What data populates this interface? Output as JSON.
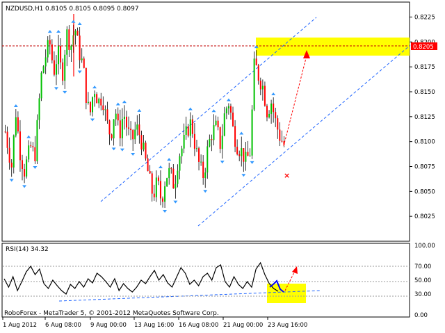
{
  "chart_data": [
    {
      "type": "candlestick",
      "symbol_label": "NZDUSD,H1",
      "ohlc_label": "0.8105 0.8105 0.8095 0.8097",
      "ylim": [
        0.8,
        0.824
      ],
      "y_ticks": [
        "0.8225",
        "0.8200",
        "0.8175",
        "0.8150",
        "0.8125",
        "0.8100",
        "0.8075",
        "0.8050",
        "0.8025"
      ],
      "y_tick_values": [
        0.8225,
        0.82,
        0.8175,
        0.815,
        0.8125,
        0.81,
        0.8075,
        0.805,
        0.8025
      ],
      "highlight_level": "0.8205",
      "highlight_value": 0.8205,
      "price_path": [
        [
          0,
          0.811
        ],
        [
          3,
          0.8075
        ],
        [
          5,
          0.813
        ],
        [
          7,
          0.809
        ],
        [
          9,
          0.807
        ],
        [
          12,
          0.8095
        ],
        [
          14,
          0.8085
        ],
        [
          17,
          0.8165
        ],
        [
          19,
          0.8185
        ],
        [
          21,
          0.82
        ],
        [
          23,
          0.817
        ],
        [
          25,
          0.819
        ],
        [
          27,
          0.8165
        ],
        [
          29,
          0.821
        ],
        [
          31,
          0.8195
        ],
        [
          33,
          0.8215
        ],
        [
          35,
          0.819
        ],
        [
          37,
          0.8175
        ],
        [
          38,
          0.815
        ],
        [
          40,
          0.8125
        ],
        [
          42,
          0.8155
        ],
        [
          44,
          0.814
        ],
        [
          46,
          0.8145
        ],
        [
          48,
          0.812
        ],
        [
          50,
          0.8105
        ],
        [
          52,
          0.8135
        ],
        [
          54,
          0.8105
        ],
        [
          56,
          0.813
        ],
        [
          58,
          0.811
        ],
        [
          60,
          0.81
        ],
        [
          62,
          0.8115
        ],
        [
          64,
          0.8105
        ],
        [
          66,
          0.8085
        ],
        [
          68,
          0.8065
        ],
        [
          70,
          0.8045
        ],
        [
          72,
          0.806
        ],
        [
          74,
          0.804
        ],
        [
          76,
          0.8065
        ],
        [
          78,
          0.807
        ],
        [
          80,
          0.8055
        ],
        [
          82,
          0.8085
        ],
        [
          84,
          0.8095
        ],
        [
          86,
          0.811
        ],
        [
          88,
          0.812
        ],
        [
          90,
          0.8095
        ],
        [
          92,
          0.8075
        ],
        [
          94,
          0.8065
        ],
        [
          96,
          0.8095
        ],
        [
          98,
          0.811
        ],
        [
          100,
          0.8115
        ],
        [
          102,
          0.8095
        ],
        [
          104,
          0.813
        ],
        [
          106,
          0.814
        ],
        [
          108,
          0.811
        ],
        [
          110,
          0.8095
        ],
        [
          112,
          0.809
        ],
        [
          114,
          0.808
        ],
        [
          116,
          0.809
        ],
        [
          118,
          0.818
        ],
        [
          120,
          0.8165
        ],
        [
          122,
          0.8155
        ],
        [
          124,
          0.813
        ],
        [
          126,
          0.814
        ],
        [
          128,
          0.812
        ],
        [
          130,
          0.8105
        ],
        [
          132,
          0.8097
        ]
      ]
    },
    {
      "type": "line",
      "indicator_label": "RSI(14) 34.32",
      "ylim": [
        0,
        100
      ],
      "y_ticks": [
        "100.00",
        "70.00",
        "50.00",
        "30.00",
        "0.00"
      ],
      "y_tick_values": [
        100,
        70,
        50,
        30,
        0
      ],
      "values": [
        52,
        40,
        55,
        35,
        48,
        62,
        70,
        58,
        66,
        45,
        38,
        50,
        42,
        35,
        30,
        44,
        38,
        48,
        40,
        52,
        46,
        60,
        55,
        48,
        40,
        52,
        35,
        45,
        38,
        33,
        40,
        50,
        45,
        55,
        64,
        50,
        58,
        46,
        40,
        54,
        68,
        60,
        44,
        50,
        42,
        55,
        60,
        50,
        68,
        72,
        48,
        40,
        55,
        44,
        38,
        48,
        40,
        66,
        75,
        58,
        45,
        38,
        34
      ]
    }
  ],
  "x_ticks": [
    "1 Aug 2012",
    "6 Aug 08:00",
    "9 Aug 00:00",
    "13 Aug 16:00",
    "16 Aug 08:00",
    "21 Aug 00:00",
    "23 Aug 16:00"
  ],
  "footer_text": "RoboForex - MetaTrader 5, © 2001-2012 MetaQuotes Software Corp.",
  "colors": {
    "bull": "#00c000",
    "bear": "#ff0000",
    "wick": "#000000",
    "fractal": "#3399ff",
    "channel": "#1e64ff",
    "highlight": "#ffff00",
    "arrow": "#ff0000",
    "price_label_bg": "#ff0000"
  }
}
